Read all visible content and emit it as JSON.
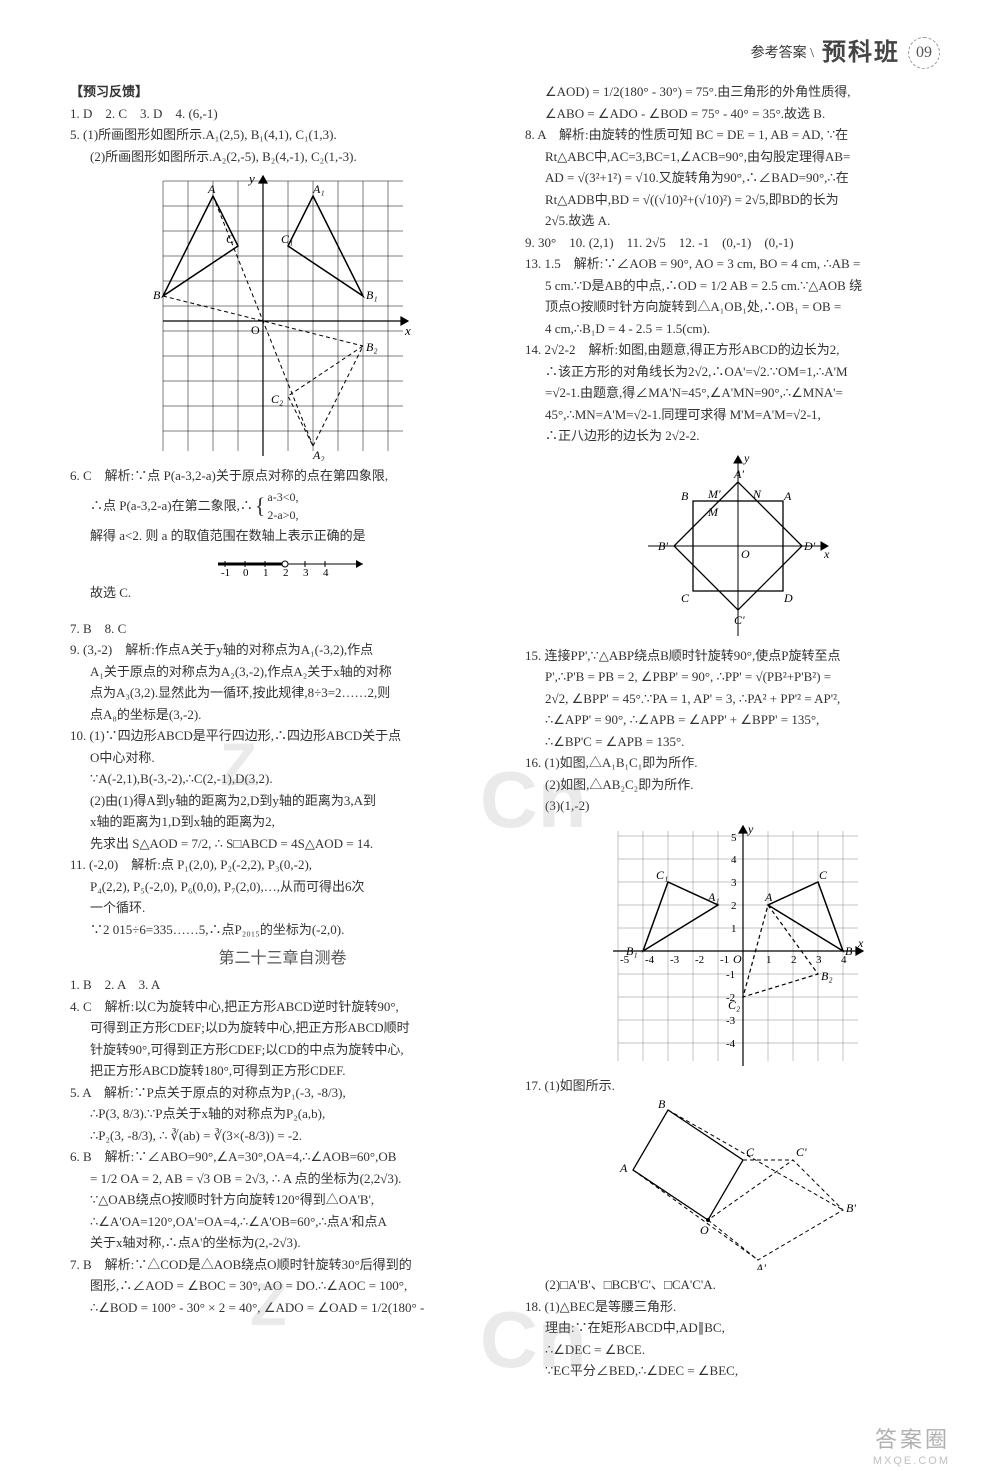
{
  "header": {
    "ref": "参考答案 \\",
    "brand": "预科班",
    "page": "09"
  },
  "left": {
    "section": "【预习反馈】",
    "l1": "1. D　2. C　3. D　4. (6,-1)",
    "l5a": "5. (1)所画图形如图所示.A₁(2,5), B₁(4,1), C₁(1,3).",
    "l5b": "(2)所画图形如图所示.A₂(2,-5), B₂(4,-1), C₂(1,-3).",
    "graph1": {
      "xrange": [
        -4,
        5
      ],
      "yrange": [
        -6,
        6
      ],
      "tri_ABC": [
        [
          -2,
          5
        ],
        [
          -4,
          1
        ],
        [
          -1,
          3
        ]
      ],
      "tri_A1B1C1": [
        [
          2,
          5
        ],
        [
          4,
          1
        ],
        [
          1,
          3
        ]
      ],
      "tri_A2B2C2": [
        [
          2,
          -5
        ],
        [
          4,
          -1
        ],
        [
          1,
          -3
        ]
      ],
      "labels": {
        "A": [
          -2,
          5
        ],
        "B": [
          -4,
          1
        ],
        "C": [
          -1,
          3
        ],
        "A1": [
          2,
          5
        ],
        "B1": [
          4,
          1
        ],
        "C1": [
          1,
          3
        ],
        "A2": [
          2,
          -5
        ],
        "B2": [
          4,
          -1
        ],
        "C2": [
          1,
          -3
        ],
        "O": [
          0,
          0
        ]
      },
      "grid_color": "#000",
      "bg": "#fff"
    },
    "l6a": "6. C　解析:∵点 P(a-3,2-a)关于原点对称的点在第四象限,",
    "l6b": "∴点 P(a-3,2-a)在第二象限,∴",
    "l6sys1": "a-3<0,",
    "l6sys2": "2-a>0,",
    "l6c": "解得 a<2. 则 a 的取值范围在数轴上表示正确的是",
    "l6d": "故选 C.",
    "numline": {
      "ticks": [
        -1,
        0,
        1,
        2,
        3,
        4
      ],
      "open_right": 2
    },
    "l7": "7. B　8. C",
    "l9a": "9. (3,-2)　解析:作点A关于y轴的对称点为A₁(-3,2),作点",
    "l9b": "A₁关于原点的对称点为A₂(3,-2),作点A₂关于x轴的对称",
    "l9c": "点为A₃(3,2).显然此为一循环,按此规律,8÷3=2……2,则",
    "l9d": "点A₈的坐标是(3,-2).",
    "l10a": "10. (1)∵四边形ABCD是平行四边形,∴四边形ABCD关于点",
    "l10b": "O中心对称.",
    "l10c": "∵A(-2,1),B(-3,-2),∴C(2,-1),D(3,2).",
    "l10d": "(2)由(1)得A到y轴的距离为2,D到y轴的距离为3,A到",
    "l10e": "x轴的距离为1,D到x轴的距离为2,",
    "l10f": "先求出 S△AOD = 7/2, ∴ S□ABCD = 4S△AOD = 14.",
    "l11a": "11. (-2,0)　解析:点 P₁(2,0), P₂(-2,2), P₃(0,-2),",
    "l11b": "P₄(2,2), P₅(-2,0), P₆(0,0), P₇(2,0),…,从而可得出6次",
    "l11c": "一个循环.",
    "l11d": "∵2 015÷6=335……5,∴点P₂₀₁₅的坐标为(-2,0).",
    "chapter": "第二十三章自测卷",
    "c1": "1. B　2. A　3. A",
    "c4a": "4. C　解析:以C为旋转中心,把正方形ABCD逆时针旋转90°,",
    "c4b": "可得到正方形CDEF;以D为旋转中心,把正方形ABCD顺时",
    "c4c": "针旋转90°,可得到正方形CDEF;以CD的中点为旋转中心,",
    "c4d": "把正方形ABCD旋转180°,可得到正方形CDEF.",
    "c5a": "5. A　解析:∵P点关于原点的对称点为P₁(-3, -8/3),",
    "c5b": "∴P(3, 8/3).∵P点关于x轴的对称点为P₂(a,b),",
    "c5c": "∴P₂(3, -8/3), ∴ ∛(ab) = ∛(3×(-8/3)) = -2.",
    "c6a": "6. B　解析:∵∠ABO=90°,∠A=30°,OA=4,∴∠AOB=60°,OB",
    "c6b": "= 1/2 OA = 2, AB = √3 OB = 2√3, ∴ A 点的坐标为(2,2√3).",
    "c6c": "∵△OAB绕点O按顺时针方向旋转120°得到△OA'B',",
    "c6d": "∴∠A'OA=120°,OA'=OA=4,∴∠A'OB=60°,∴点A'和点A",
    "c6e": "关于x轴对称,∴点A'的坐标为(2,-2√3).",
    "c7a": "7. B　解析:∵△COD是△AOB绕点O顺时针旋转30°后得到的",
    "c7b": "图形,∴∠AOD = ∠BOC = 30°, AO = DO.∴∠AOC = 100°,",
    "c7c": "∴∠BOD = 100° - 30° × 2 = 40°, ∠ADO = ∠OAD = 1/2(180° -"
  },
  "right": {
    "r7d": "∠AOD) = 1/2(180° - 30°) = 75°.由三角形的外角性质得,",
    "r7e": "∠ABO = ∠ADO - ∠BOD = 75° - 40° = 35°.故选 B.",
    "r8a": "8. A　解析:由旋转的性质可知 BC = DE = 1, AB = AD, ∵在",
    "r8b": "Rt△ABC中,AC=3,BC=1,∠ACB=90°,由勾股定理得AB=",
    "r8c": "AD = √(3²+1²) = √10.又旋转角为90°,∴∠BAD=90°,∴在",
    "r8d": "Rt△ADB中,BD = √((√10)²+(√10)²) = 2√5,即BD的长为",
    "r8e": "2√5.故选 A.",
    "r9": "9. 30°　10. (2,1)　11. 2√5　12. -1　(0,-1)　(0,-1)",
    "r13a": "13. 1.5　解析:∵∠AOB = 90°, AO = 3 cm, BO = 4 cm, ∴AB =",
    "r13b": "5 cm.∵D是AB的中点,∴OD = 1/2 AB = 2.5 cm.∵△AOB 绕",
    "r13c": "顶点O按顺时针方向旋转到△A₁OB₁处,∴OB₁ = OB =",
    "r13d": "4 cm,∴B₁D = 4 - 2.5 = 1.5(cm).",
    "r14a": "14. 2√2-2　解析:如图,由题意,得正方形ABCD的边长为2,",
    "r14b": "∴该正方形的对角线长为2√2,∴OA'=√2.∵OM=1,∴A'M",
    "r14c": "=√2-1.由题意,得∠MA'N=45°,∠A'MN=90°,∴∠MNA'=",
    "r14d": "45°,∴MN=A'M=√2-1.同理可求得 M'M=A'M=√2-1,",
    "r14e": "∴正八边形的边长为 2√2-2.",
    "graph2": {
      "square_ABCD": [
        [
          1,
          1
        ],
        [
          -1,
          1
        ],
        [
          -1,
          -1
        ],
        [
          1,
          -1
        ]
      ],
      "rot_square": [
        [
          0,
          1.414
        ],
        [
          -1.414,
          0
        ],
        [
          0,
          -1.414
        ],
        [
          1.414,
          0
        ]
      ],
      "labels": {
        "A": [
          1,
          1
        ],
        "B": [
          -1,
          1
        ],
        "C": [
          -1,
          -1
        ],
        "D": [
          1,
          -1
        ],
        "A'": [
          0,
          1.414
        ],
        "B'": [
          -1.414,
          0
        ],
        "C'": [
          0,
          -1.414
        ],
        "D'": [
          1.414,
          0
        ],
        "O": [
          0,
          0
        ],
        "M": [
          -0.414,
          1
        ],
        "M'": [
          0.414,
          1
        ],
        "N": [
          -1,
          0.414
        ]
      }
    },
    "r15a": "15. 连接PP',∵△ABP绕点B顺时针旋转90°,使点P旋转至点",
    "r15b": "P',∴P'B = PB = 2, ∠PBP' = 90°, ∴PP' = √(PB²+P'B²) =",
    "r15c": "2√2, ∠BPP' = 45°.∵PA = 1, AP' = 3, ∴PA² + PP'² = AP'²,",
    "r15d": "∴∠APP' = 90°, ∴∠APB = ∠APP' + ∠BPP' = 135°,",
    "r15e": "∴∠BP'C = ∠APB = 135°.",
    "r16a": "16. (1)如图,△A₁B₁C₁即为所作.",
    "r16b": "(2)如图,△AB₂C₂即为所作.",
    "r16c": "(3)(1,-2)",
    "graph3": {
      "xrange": [
        -5,
        5
      ],
      "yrange": [
        -5,
        5
      ],
      "tri_ABC": [
        [
          1,
          2
        ],
        [
          4,
          0
        ],
        [
          3,
          3
        ]
      ],
      "tri_A1B1C1": [
        [
          -1,
          2
        ],
        [
          -4,
          0
        ],
        [
          -3,
          3
        ]
      ],
      "tri_AB2C2": [
        [
          1,
          2
        ],
        [
          3,
          -1
        ],
        [
          0,
          -2
        ]
      ],
      "axis_labels": {
        "x": "x",
        "y": "y"
      },
      "ticks_x": [
        -5,
        -4,
        -3,
        -2,
        -1,
        1,
        2,
        3,
        4
      ],
      "ticks_y": [
        -5,
        -4,
        -3,
        -2,
        -1,
        1,
        2,
        3,
        4,
        5
      ]
    },
    "r17a": "17. (1)如图所示.",
    "graph4": {
      "square": [
        [
          0,
          0
        ],
        [
          -2,
          1.5
        ],
        [
          -0.5,
          3.5
        ],
        [
          1.5,
          2
        ]
      ],
      "rot_square": [
        [
          0,
          0
        ],
        [
          1.5,
          -2
        ],
        [
          3.5,
          -0.5
        ],
        [
          2,
          1.5
        ]
      ],
      "labels": {
        "A": [
          -2,
          1.5
        ],
        "B": [
          -0.5,
          3.5
        ],
        "C": [
          1.5,
          2
        ],
        "O": [
          0,
          0
        ],
        "A'": [
          1.5,
          -2
        ],
        "B'": [
          3.5,
          -0.5
        ],
        "C'": [
          2,
          1.5
        ]
      }
    },
    "r17b": "(2)□A'B'、□BCB'C'、□CA'C'A.",
    "r18a": "18. (1)△BEC是等腰三角形.",
    "r18b": "理由:∵在矩形ABCD中,AD∥BC,",
    "r18c": "∴∠DEC = ∠BCE.",
    "r18d": "∵EC平分∠BED,∴∠DEC = ∠BEC,"
  },
  "footer": {
    "main": "答案圈",
    "sub": "MXQE.COM"
  }
}
